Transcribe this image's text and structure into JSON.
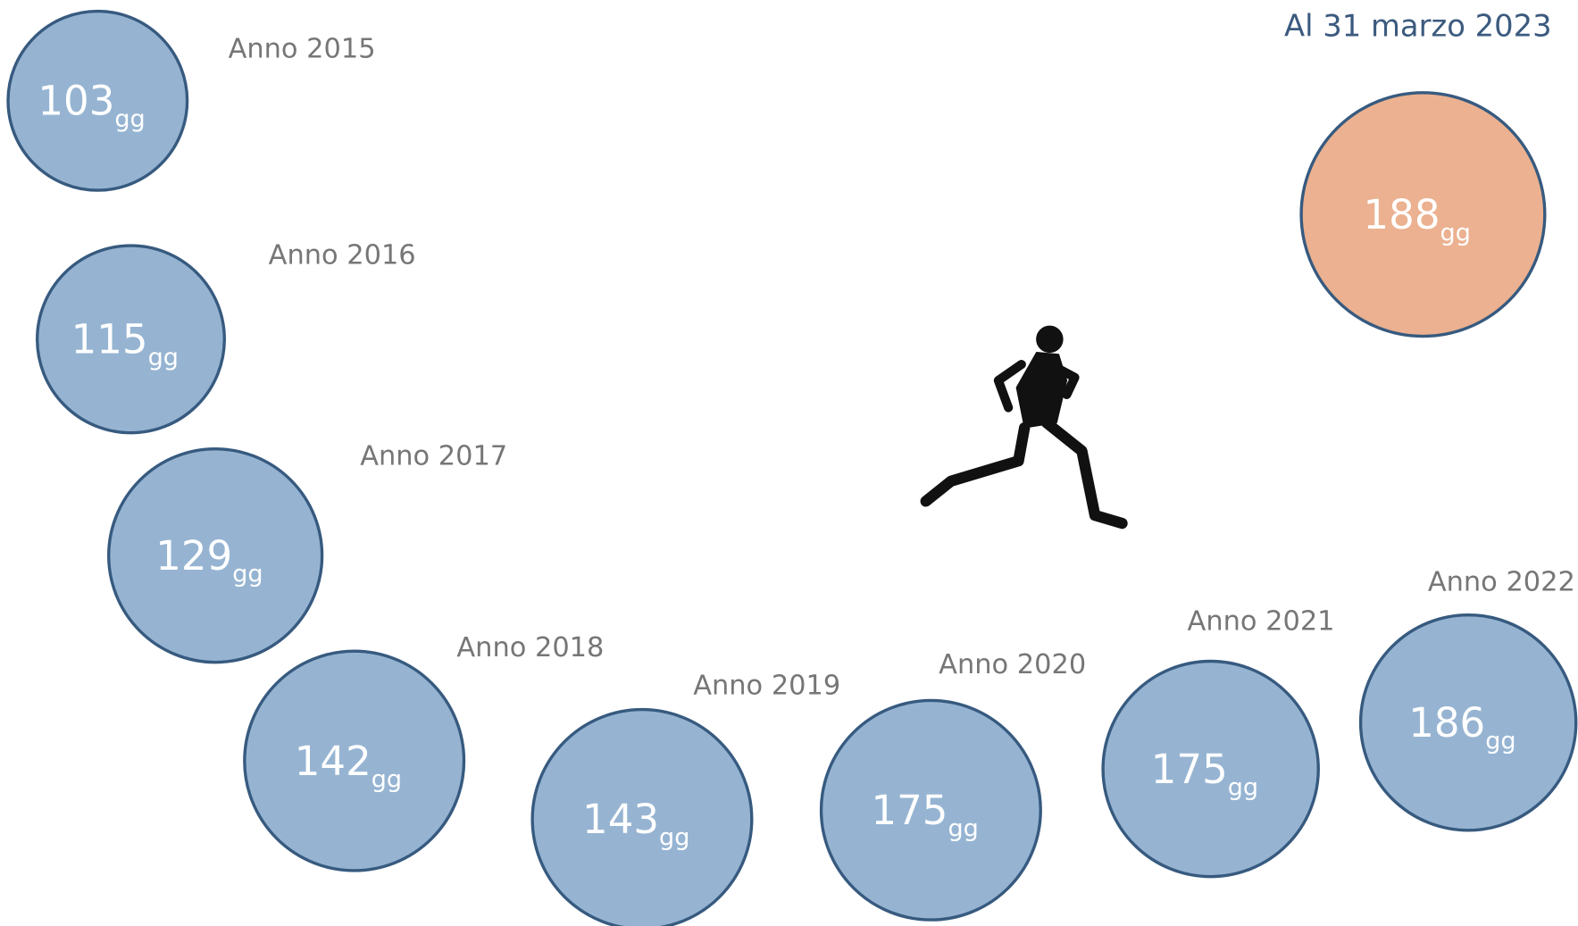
{
  "header": {
    "title": "Al 31 marzo 2023"
  },
  "items": [
    {
      "label": "Anno 2015",
      "value": "103",
      "unit": "gg"
    },
    {
      "label": "Anno 2016",
      "value": "115",
      "unit": "gg"
    },
    {
      "label": "Anno 2017",
      "value": "129",
      "unit": "gg"
    },
    {
      "label": "Anno 2018",
      "value": "142",
      "unit": "gg"
    },
    {
      "label": "Anno 2019",
      "value": "143",
      "unit": "gg"
    },
    {
      "label": "Anno 2020",
      "value": "175",
      "unit": "gg"
    },
    {
      "label": "Anno 2021",
      "value": "175",
      "unit": "gg"
    },
    {
      "label": "Anno 2022",
      "value": "186",
      "unit": "gg"
    }
  ],
  "current": {
    "value": "188",
    "unit": "gg"
  }
}
